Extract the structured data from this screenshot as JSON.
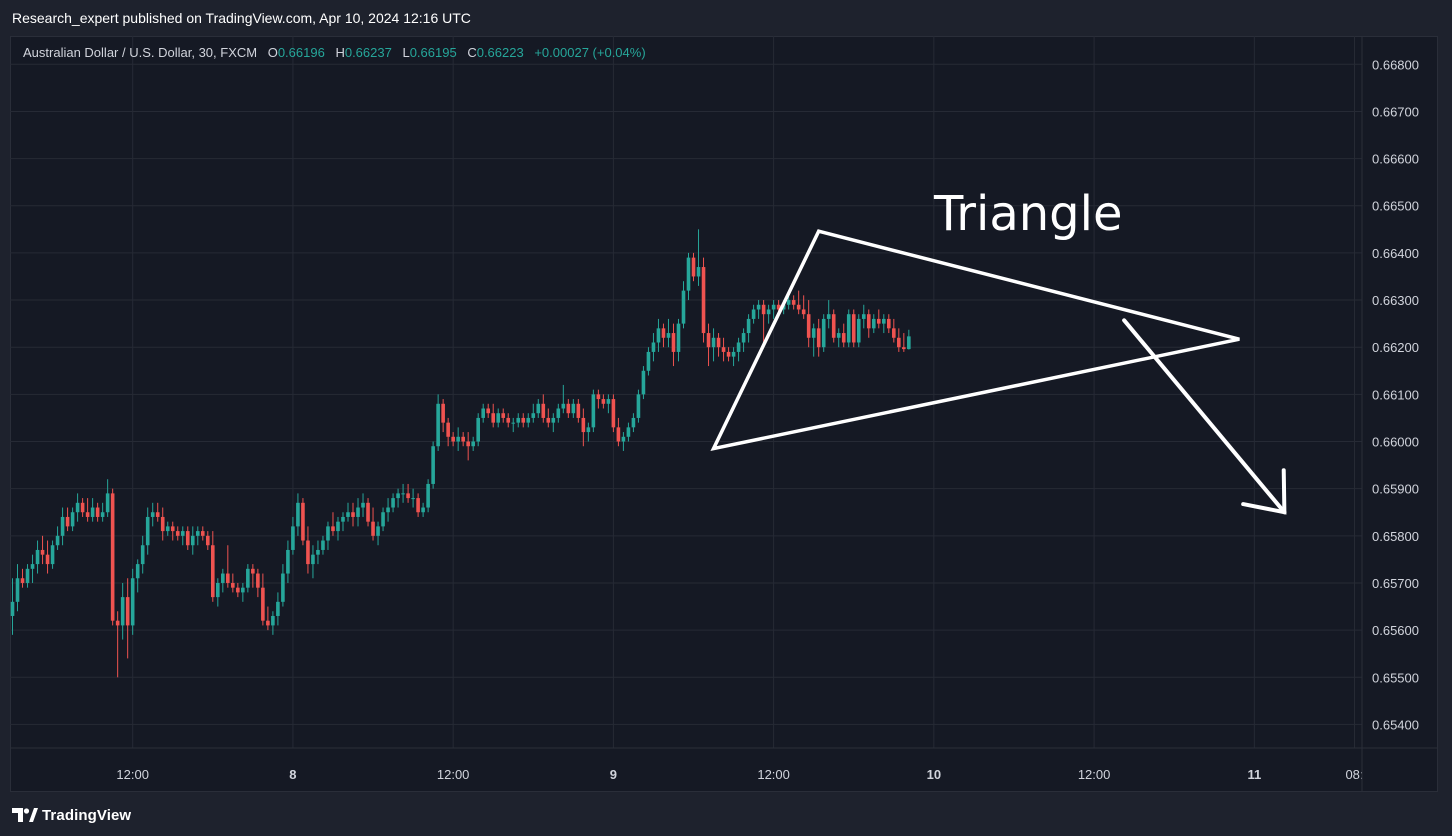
{
  "header": {
    "published_line": "Research_expert published on TradingView.com, Apr 10, 2024 12:16 UTC"
  },
  "legend": {
    "symbol": "Australian Dollar / U.S. Dollar, 30, FXCM",
    "o_label": "O",
    "o_value": "0.66196",
    "h_label": "H",
    "h_value": "0.66237",
    "l_label": "L",
    "l_value": "0.66195",
    "c_label": "C",
    "c_value": "0.66223",
    "change": "+0.00027 (+0.04%)"
  },
  "annotation": {
    "text": "Triangle"
  },
  "footer": {
    "brand": "TradingView",
    "logo_icon": "tradingview-logo-icon"
  },
  "colors": {
    "up": "#26a69a",
    "down": "#ef5350",
    "background": "#151924",
    "grid": "#262a35",
    "text": "#d1d4dc",
    "drawing": "#ffffff"
  },
  "chart_data": {
    "type": "candlestick",
    "symbol": "AUDUSD",
    "timeframe": "30",
    "ylim": [
      0.6535,
      0.6686
    ],
    "y_ticks": [
      "0.66800",
      "0.66700",
      "0.66600",
      "0.66500",
      "0.66400",
      "0.66300",
      "0.66200",
      "0.66100",
      "0.66000",
      "0.65900",
      "0.65800",
      "0.65700",
      "0.65600",
      "0.65500",
      "0.65400"
    ],
    "x_ticks": [
      "12:00",
      "8",
      "12:00",
      "9",
      "12:00",
      "10",
      "12:00",
      "11",
      "08:"
    ],
    "x_tick_bar_index": [
      24,
      56,
      88,
      120,
      152,
      184,
      216,
      248,
      268
    ],
    "total_bar_slots": 270,
    "grid": true,
    "candles": [
      [
        0.6563,
        0.6571,
        0.6559,
        0.6566
      ],
      [
        0.6566,
        0.6574,
        0.6564,
        0.6571
      ],
      [
        0.6571,
        0.6573,
        0.6569,
        0.657
      ],
      [
        0.657,
        0.6574,
        0.6569,
        0.6573
      ],
      [
        0.6573,
        0.6576,
        0.657,
        0.6574
      ],
      [
        0.6574,
        0.6579,
        0.6572,
        0.6577
      ],
      [
        0.6577,
        0.658,
        0.6574,
        0.6576
      ],
      [
        0.6576,
        0.6579,
        0.6572,
        0.6574
      ],
      [
        0.6574,
        0.6579,
        0.6573,
        0.6578
      ],
      [
        0.6578,
        0.6582,
        0.6577,
        0.658
      ],
      [
        0.658,
        0.6586,
        0.6578,
        0.6584
      ],
      [
        0.6584,
        0.6586,
        0.6581,
        0.6582
      ],
      [
        0.6582,
        0.6586,
        0.6581,
        0.6585
      ],
      [
        0.6585,
        0.6589,
        0.6583,
        0.6587
      ],
      [
        0.6587,
        0.6588,
        0.6584,
        0.6585
      ],
      [
        0.6585,
        0.6588,
        0.6583,
        0.6584
      ],
      [
        0.6584,
        0.6588,
        0.6583,
        0.6586
      ],
      [
        0.6586,
        0.6587,
        0.6583,
        0.6584
      ],
      [
        0.6584,
        0.6587,
        0.6583,
        0.6585
      ],
      [
        0.6585,
        0.6592,
        0.6584,
        0.6589
      ],
      [
        0.6589,
        0.659,
        0.6561,
        0.6562
      ],
      [
        0.6562,
        0.6564,
        0.655,
        0.6561
      ],
      [
        0.6561,
        0.657,
        0.6558,
        0.6567
      ],
      [
        0.6567,
        0.6571,
        0.6554,
        0.6561
      ],
      [
        0.6561,
        0.6573,
        0.6559,
        0.6571
      ],
      [
        0.6571,
        0.6575,
        0.6568,
        0.6574
      ],
      [
        0.6574,
        0.658,
        0.6572,
        0.6578
      ],
      [
        0.6578,
        0.6586,
        0.6576,
        0.6584
      ],
      [
        0.6584,
        0.6587,
        0.6582,
        0.6585
      ],
      [
        0.6585,
        0.6587,
        0.6583,
        0.6584
      ],
      [
        0.6584,
        0.6586,
        0.6579,
        0.6581
      ],
      [
        0.6581,
        0.6583,
        0.658,
        0.6582
      ],
      [
        0.6582,
        0.6583,
        0.6579,
        0.6581
      ],
      [
        0.6581,
        0.6582,
        0.6579,
        0.658
      ],
      [
        0.658,
        0.6582,
        0.6578,
        0.6581
      ],
      [
        0.6581,
        0.6582,
        0.6577,
        0.6578
      ],
      [
        0.6578,
        0.6582,
        0.6576,
        0.658
      ],
      [
        0.658,
        0.6582,
        0.6578,
        0.6581
      ],
      [
        0.6581,
        0.6582,
        0.6579,
        0.658
      ],
      [
        0.658,
        0.6581,
        0.6577,
        0.6578
      ],
      [
        0.6578,
        0.6581,
        0.6566,
        0.6567
      ],
      [
        0.6567,
        0.6571,
        0.6565,
        0.657
      ],
      [
        0.657,
        0.6573,
        0.6568,
        0.6572
      ],
      [
        0.6572,
        0.6578,
        0.6569,
        0.657
      ],
      [
        0.657,
        0.6572,
        0.6568,
        0.6569
      ],
      [
        0.6569,
        0.657,
        0.6567,
        0.6568
      ],
      [
        0.6568,
        0.657,
        0.6566,
        0.6569
      ],
      [
        0.6569,
        0.6574,
        0.6568,
        0.6573
      ],
      [
        0.6573,
        0.6574,
        0.6569,
        0.6572
      ],
      [
        0.6572,
        0.6573,
        0.6567,
        0.6569
      ],
      [
        0.6569,
        0.6572,
        0.6561,
        0.6562
      ],
      [
        0.6562,
        0.6565,
        0.656,
        0.6561
      ],
      [
        0.6561,
        0.6564,
        0.6559,
        0.6563
      ],
      [
        0.6563,
        0.6568,
        0.6561,
        0.6566
      ],
      [
        0.6566,
        0.6574,
        0.6565,
        0.6572
      ],
      [
        0.6572,
        0.6579,
        0.657,
        0.6577
      ],
      [
        0.6577,
        0.6584,
        0.6576,
        0.6582
      ],
      [
        0.6582,
        0.6589,
        0.658,
        0.6587
      ],
      [
        0.6587,
        0.6588,
        0.6578,
        0.6579
      ],
      [
        0.6579,
        0.6582,
        0.6572,
        0.6574
      ],
      [
        0.6574,
        0.6578,
        0.6571,
        0.6576
      ],
      [
        0.6576,
        0.6579,
        0.6574,
        0.6577
      ],
      [
        0.6577,
        0.658,
        0.6576,
        0.6579
      ],
      [
        0.6579,
        0.6583,
        0.6577,
        0.6582
      ],
      [
        0.6582,
        0.6585,
        0.658,
        0.6581
      ],
      [
        0.6581,
        0.6584,
        0.6579,
        0.6583
      ],
      [
        0.6583,
        0.6585,
        0.6581,
        0.6584
      ],
      [
        0.6584,
        0.6587,
        0.6583,
        0.6585
      ],
      [
        0.6585,
        0.6587,
        0.6582,
        0.6584
      ],
      [
        0.6584,
        0.6588,
        0.6582,
        0.6586
      ],
      [
        0.6586,
        0.6589,
        0.6584,
        0.6587
      ],
      [
        0.6587,
        0.6588,
        0.6582,
        0.6583
      ],
      [
        0.6583,
        0.6586,
        0.6579,
        0.658
      ],
      [
        0.658,
        0.6583,
        0.6578,
        0.6582
      ],
      [
        0.6582,
        0.6586,
        0.6581,
        0.6585
      ],
      [
        0.6585,
        0.6588,
        0.6583,
        0.6586
      ],
      [
        0.6586,
        0.6589,
        0.6585,
        0.6588
      ],
      [
        0.6588,
        0.659,
        0.6586,
        0.6589
      ],
      [
        0.6589,
        0.6591,
        0.6587,
        0.6589
      ],
      [
        0.6589,
        0.6591,
        0.6587,
        0.6588
      ],
      [
        0.6588,
        0.659,
        0.6586,
        0.6588
      ],
      [
        0.6588,
        0.6589,
        0.6584,
        0.6585
      ],
      [
        0.6585,
        0.6587,
        0.6584,
        0.6586
      ],
      [
        0.6586,
        0.6592,
        0.6585,
        0.6591
      ],
      [
        0.6591,
        0.66,
        0.659,
        0.6599
      ],
      [
        0.6599,
        0.661,
        0.6598,
        0.6608
      ],
      [
        0.6608,
        0.6609,
        0.6602,
        0.6604
      ],
      [
        0.6604,
        0.6605,
        0.6599,
        0.6601
      ],
      [
        0.6601,
        0.6602,
        0.6599,
        0.66
      ],
      [
        0.66,
        0.6603,
        0.6598,
        0.6601
      ],
      [
        0.6601,
        0.6602,
        0.6599,
        0.66
      ],
      [
        0.66,
        0.6602,
        0.6596,
        0.6599
      ],
      [
        0.6599,
        0.6601,
        0.6598,
        0.66
      ],
      [
        0.66,
        0.6606,
        0.6599,
        0.6605
      ],
      [
        0.6605,
        0.6608,
        0.6604,
        0.6607
      ],
      [
        0.6607,
        0.6608,
        0.6605,
        0.6606
      ],
      [
        0.6606,
        0.6608,
        0.6603,
        0.6604
      ],
      [
        0.6604,
        0.6607,
        0.6603,
        0.6606
      ],
      [
        0.6606,
        0.6607,
        0.6604,
        0.6605
      ],
      [
        0.6605,
        0.6606,
        0.6603,
        0.6604
      ],
      [
        0.6604,
        0.6605,
        0.6602,
        0.6604
      ],
      [
        0.6604,
        0.6606,
        0.6603,
        0.6605
      ],
      [
        0.6605,
        0.6606,
        0.6603,
        0.6604
      ],
      [
        0.6604,
        0.6606,
        0.6603,
        0.6605
      ],
      [
        0.6605,
        0.6608,
        0.6604,
        0.6606
      ],
      [
        0.6606,
        0.6609,
        0.6605,
        0.6608
      ],
      [
        0.6608,
        0.661,
        0.6604,
        0.6605
      ],
      [
        0.6605,
        0.6607,
        0.6603,
        0.6604
      ],
      [
        0.6604,
        0.6606,
        0.6602,
        0.6605
      ],
      [
        0.6605,
        0.6608,
        0.6604,
        0.6607
      ],
      [
        0.6607,
        0.6612,
        0.6606,
        0.6608
      ],
      [
        0.6608,
        0.6609,
        0.6605,
        0.6606
      ],
      [
        0.6606,
        0.6609,
        0.6605,
        0.6608
      ],
      [
        0.6608,
        0.6609,
        0.6604,
        0.6605
      ],
      [
        0.6605,
        0.6607,
        0.6599,
        0.6602
      ],
      [
        0.6602,
        0.6604,
        0.66,
        0.6603
      ],
      [
        0.6603,
        0.6611,
        0.6602,
        0.661
      ],
      [
        0.661,
        0.6611,
        0.6607,
        0.6609
      ],
      [
        0.6609,
        0.661,
        0.6607,
        0.6608
      ],
      [
        0.6608,
        0.661,
        0.6606,
        0.6609
      ],
      [
        0.6609,
        0.661,
        0.6602,
        0.6603
      ],
      [
        0.6603,
        0.6605,
        0.6599,
        0.66
      ],
      [
        0.66,
        0.6602,
        0.6598,
        0.6601
      ],
      [
        0.6601,
        0.6604,
        0.66,
        0.6603
      ],
      [
        0.6603,
        0.6606,
        0.6602,
        0.6605
      ],
      [
        0.6605,
        0.6611,
        0.6604,
        0.661
      ],
      [
        0.661,
        0.6616,
        0.6609,
        0.6615
      ],
      [
        0.6615,
        0.662,
        0.6614,
        0.6619
      ],
      [
        0.6619,
        0.6623,
        0.6617,
        0.6621
      ],
      [
        0.6621,
        0.6626,
        0.6619,
        0.6624
      ],
      [
        0.6624,
        0.6625,
        0.662,
        0.6622
      ],
      [
        0.6622,
        0.6626,
        0.662,
        0.6623
      ],
      [
        0.6623,
        0.6625,
        0.6616,
        0.6619
      ],
      [
        0.6619,
        0.6626,
        0.6617,
        0.6625
      ],
      [
        0.6625,
        0.6634,
        0.6624,
        0.6632
      ],
      [
        0.6632,
        0.664,
        0.663,
        0.6639
      ],
      [
        0.6639,
        0.664,
        0.6634,
        0.6635
      ],
      [
        0.6635,
        0.6645,
        0.6633,
        0.6637
      ],
      [
        0.6637,
        0.6639,
        0.6621,
        0.6623
      ],
      [
        0.6623,
        0.6625,
        0.6616,
        0.662
      ],
      [
        0.662,
        0.6624,
        0.6617,
        0.6622
      ],
      [
        0.6622,
        0.6623,
        0.6618,
        0.662
      ],
      [
        0.662,
        0.6622,
        0.6617,
        0.6619
      ],
      [
        0.6619,
        0.662,
        0.6617,
        0.6618
      ],
      [
        0.6618,
        0.662,
        0.6616,
        0.6619
      ],
      [
        0.6619,
        0.6622,
        0.6617,
        0.6621
      ],
      [
        0.6621,
        0.6624,
        0.6619,
        0.6623
      ],
      [
        0.6623,
        0.6627,
        0.6621,
        0.6626
      ],
      [
        0.6626,
        0.6629,
        0.6625,
        0.6628
      ],
      [
        0.6628,
        0.663,
        0.6626,
        0.6629
      ],
      [
        0.6629,
        0.663,
        0.662,
        0.6627
      ],
      [
        0.6627,
        0.6629,
        0.6625,
        0.6628
      ],
      [
        0.6628,
        0.663,
        0.6626,
        0.6629
      ],
      [
        0.6629,
        0.663,
        0.6627,
        0.6628
      ],
      [
        0.6628,
        0.663,
        0.6627,
        0.6629
      ],
      [
        0.6629,
        0.6631,
        0.6628,
        0.663
      ],
      [
        0.663,
        0.6631,
        0.6628,
        0.6629
      ],
      [
        0.6629,
        0.6632,
        0.6627,
        0.6628
      ],
      [
        0.6628,
        0.6631,
        0.6626,
        0.6627
      ],
      [
        0.6627,
        0.663,
        0.662,
        0.6622
      ],
      [
        0.6622,
        0.6625,
        0.6618,
        0.6624
      ],
      [
        0.6624,
        0.6626,
        0.6618,
        0.662
      ],
      [
        0.662,
        0.6627,
        0.6619,
        0.6626
      ],
      [
        0.6626,
        0.663,
        0.6624,
        0.6627
      ],
      [
        0.6627,
        0.6628,
        0.6621,
        0.6622
      ],
      [
        0.6622,
        0.6624,
        0.662,
        0.6623
      ],
      [
        0.6623,
        0.6625,
        0.662,
        0.6621
      ],
      [
        0.6621,
        0.6628,
        0.662,
        0.6627
      ],
      [
        0.6627,
        0.6628,
        0.662,
        0.6621
      ],
      [
        0.6621,
        0.6627,
        0.662,
        0.6626
      ],
      [
        0.6626,
        0.6629,
        0.6624,
        0.6627
      ],
      [
        0.6627,
        0.6628,
        0.6622,
        0.6624
      ],
      [
        0.6624,
        0.6627,
        0.6623,
        0.6626
      ],
      [
        0.6626,
        0.6628,
        0.6624,
        0.6625
      ],
      [
        0.6625,
        0.6627,
        0.6623,
        0.6626
      ],
      [
        0.6626,
        0.6627,
        0.6623,
        0.6624
      ],
      [
        0.6624,
        0.6626,
        0.6621,
        0.6622
      ],
      [
        0.6622,
        0.6624,
        0.6619,
        0.662
      ],
      [
        0.662,
        0.6623,
        0.6619,
        0.66196
      ],
      [
        0.66196,
        0.66237,
        0.66195,
        0.66223
      ]
    ],
    "drawings": {
      "triangle": [
        {
          "bar": 161,
          "price": 0.66446
        },
        {
          "bar": 245,
          "price": 0.66217
        },
        {
          "bar": 140,
          "price": 0.65985
        }
      ],
      "arrow": {
        "from": {
          "bar": 222,
          "price": 0.66257
        },
        "to": {
          "bar": 254,
          "price": 0.6585
        }
      }
    }
  }
}
